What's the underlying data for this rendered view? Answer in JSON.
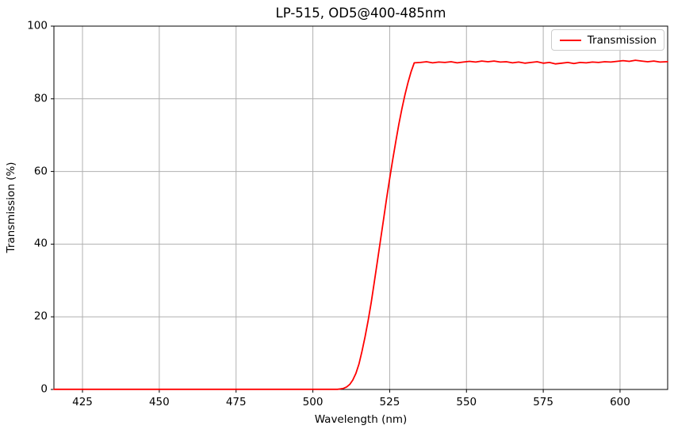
{
  "colors": {
    "background": "#ffffff",
    "grid": "#b0b0b0",
    "spine": "#000000",
    "tick": "#000000",
    "text": "#000000",
    "legend_border": "#cccccc",
    "curve": "#ff0000"
  },
  "chart_data": {
    "type": "line",
    "title": "LP-515, OD5@400-485nm",
    "xlabel": "Wavelength (nm)",
    "ylabel": "Transmission (%)",
    "xlim": [
      415.7,
      615.5
    ],
    "ylim": [
      0,
      100
    ],
    "x_ticks": [
      425,
      450,
      475,
      500,
      525,
      550,
      575,
      600
    ],
    "y_ticks": [
      0,
      20,
      40,
      60,
      80,
      100
    ],
    "grid": true,
    "legend_position": "upper right",
    "series": [
      {
        "name": "Transmission",
        "color": "#ff0000",
        "x": [
          415.7,
          420,
          424,
          428,
          432,
          436,
          440,
          444,
          448,
          452,
          456,
          460,
          464,
          468,
          472,
          476,
          480,
          484,
          488,
          492,
          496,
          500,
          504,
          508,
          509,
          510,
          511,
          512,
          513,
          514,
          515,
          516,
          517,
          518,
          519,
          520,
          521,
          522,
          523,
          524,
          525,
          526,
          527,
          528,
          529,
          530,
          531,
          532,
          533,
          535,
          537,
          539,
          541,
          543,
          545,
          547,
          549,
          551,
          553,
          555,
          557,
          559,
          561,
          563,
          565,
          567,
          569,
          571,
          573,
          575,
          577,
          579,
          581,
          583,
          585,
          587,
          589,
          591,
          593,
          595,
          597,
          599,
          601,
          603,
          605,
          607,
          609,
          611,
          613,
          615,
          615.5
        ],
        "y": [
          0.05,
          0.05,
          0.05,
          0.05,
          0.05,
          0.05,
          0.05,
          0.05,
          0.05,
          0.05,
          0.05,
          0.05,
          0.05,
          0.05,
          0.05,
          0.05,
          0.05,
          0.05,
          0.05,
          0.05,
          0.05,
          0.05,
          0.05,
          0.05,
          0.15,
          0.3,
          0.7,
          1.4,
          2.6,
          4.4,
          7.0,
          10.5,
          14.5,
          19.0,
          24.0,
          29.5,
          35.2,
          41.0,
          46.8,
          52.5,
          58.0,
          63.3,
          68.3,
          73.0,
          77.3,
          81.2,
          84.6,
          87.5,
          89.9,
          90.0,
          90.2,
          89.9,
          90.1,
          90.0,
          90.2,
          89.9,
          90.1,
          90.3,
          90.1,
          90.4,
          90.2,
          90.4,
          90.1,
          90.2,
          89.9,
          90.1,
          89.8,
          90.0,
          90.2,
          89.8,
          90.0,
          89.6,
          89.8,
          90.0,
          89.7,
          90.0,
          89.9,
          90.1,
          90.0,
          90.2,
          90.1,
          90.3,
          90.5,
          90.3,
          90.6,
          90.4,
          90.2,
          90.4,
          90.1,
          90.2,
          90.2
        ]
      }
    ]
  }
}
